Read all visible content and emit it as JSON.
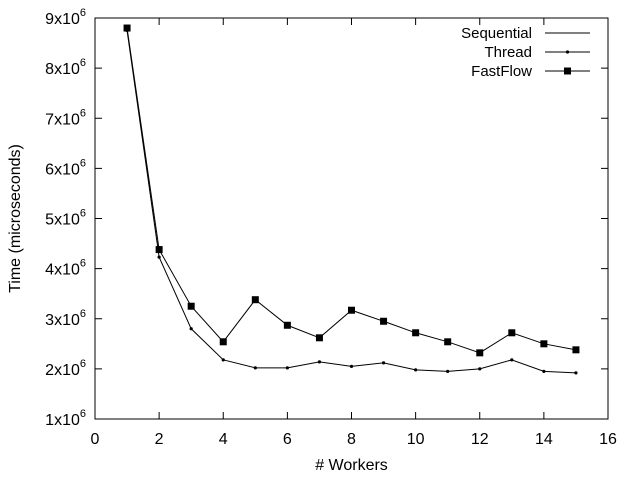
{
  "chart_data": {
    "type": "line",
    "title": "",
    "xlabel": "# Workers",
    "ylabel": "Time (microseconds)",
    "xlim": [
      0,
      16
    ],
    "ylim": [
      1000000,
      9000000
    ],
    "x_ticks": [
      0,
      2,
      4,
      6,
      8,
      10,
      12,
      14,
      16
    ],
    "y_ticks": [
      {
        "value": 1000000,
        "mantissa": "1x10",
        "exponent": "6"
      },
      {
        "value": 2000000,
        "mantissa": "2x10",
        "exponent": "6"
      },
      {
        "value": 3000000,
        "mantissa": "3x10",
        "exponent": "6"
      },
      {
        "value": 4000000,
        "mantissa": "4x10",
        "exponent": "6"
      },
      {
        "value": 5000000,
        "mantissa": "5x10",
        "exponent": "6"
      },
      {
        "value": 6000000,
        "mantissa": "6x10",
        "exponent": "6"
      },
      {
        "value": 7000000,
        "mantissa": "7x10",
        "exponent": "6"
      },
      {
        "value": 8000000,
        "mantissa": "8x10",
        "exponent": "6"
      },
      {
        "value": 9000000,
        "mantissa": "9x10",
        "exponent": "6"
      }
    ],
    "grid": false,
    "legend_position": "top-right",
    "series": [
      {
        "name": "Sequential",
        "marker": "none",
        "color": "#000000",
        "x": [],
        "values": []
      },
      {
        "name": "Thread",
        "marker": "dot",
        "color": "#000000",
        "x": [
          1,
          2,
          3,
          4,
          5,
          6,
          7,
          8,
          9,
          10,
          11,
          12,
          13,
          14,
          15
        ],
        "values": [
          8750000,
          4230000,
          2800000,
          2180000,
          2020000,
          2020000,
          2140000,
          2050000,
          2120000,
          1980000,
          1950000,
          2000000,
          2180000,
          1950000,
          1920000
        ]
      },
      {
        "name": "FastFlow",
        "marker": "square",
        "color": "#000000",
        "x": [
          1,
          2,
          3,
          4,
          5,
          6,
          7,
          8,
          9,
          10,
          11,
          12,
          13,
          14,
          15
        ],
        "values": [
          8800000,
          4380000,
          3250000,
          2540000,
          3380000,
          2870000,
          2620000,
          3170000,
          2950000,
          2720000,
          2540000,
          2320000,
          2720000,
          2500000,
          2380000
        ]
      }
    ]
  }
}
